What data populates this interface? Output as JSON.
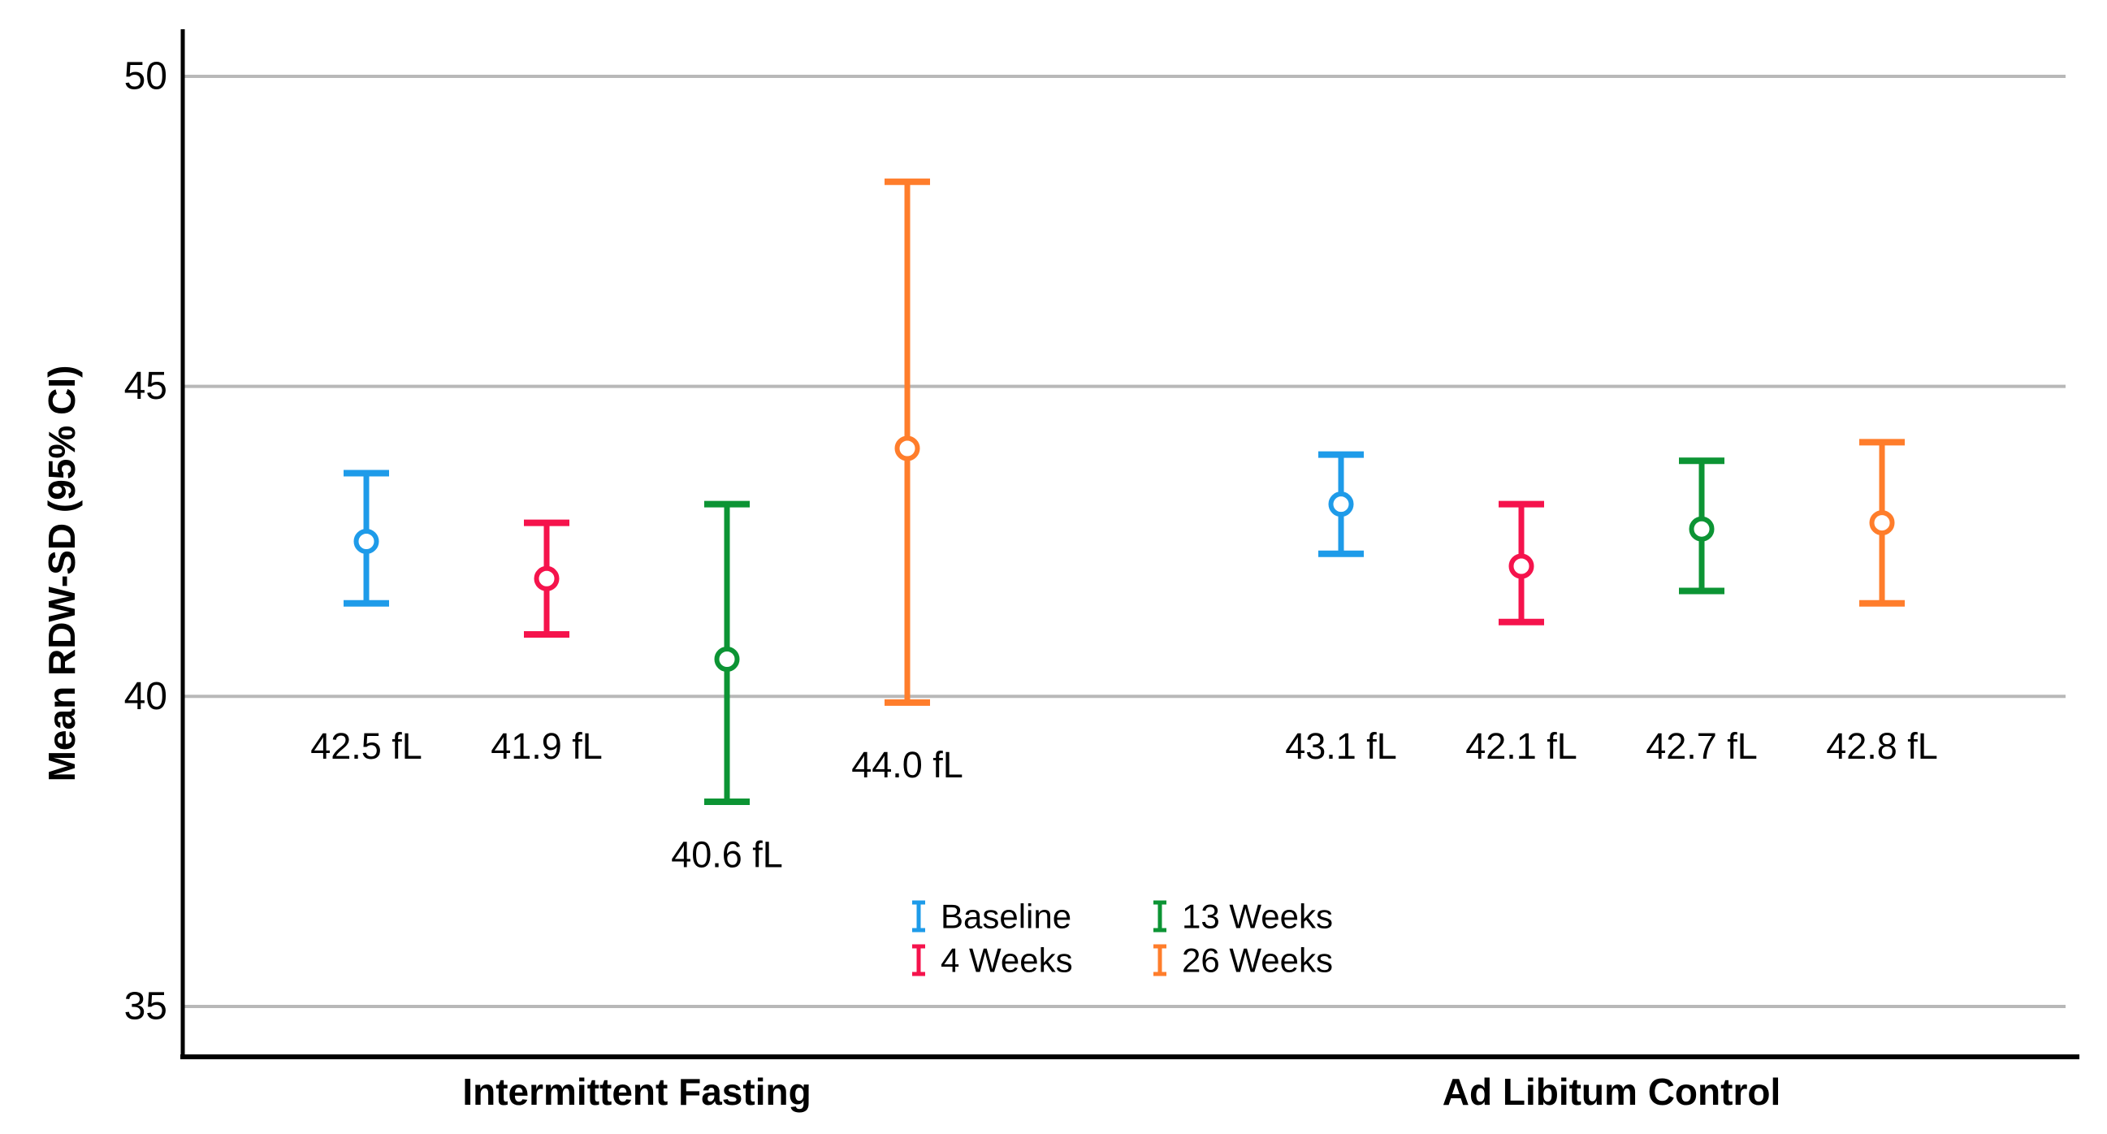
{
  "chart_data": {
    "type": "scatter",
    "subtype": "grouped-errorbar-ci",
    "title": "",
    "xlabel": "",
    "ylabel": "Mean RDW-SD (95% CI)",
    "unit": "fL",
    "ylim": [
      34.0,
      50.8
    ],
    "yticks": [
      35,
      40,
      45,
      50
    ],
    "grid": true,
    "legend_position": "inside-bottom-center, two columns",
    "categories": [
      "Intermittent Fasting",
      "Ad Libitum Control"
    ],
    "series": [
      {
        "name": "Baseline",
        "color": "#1E9BE9",
        "points": [
          {
            "group": "Intermittent Fasting",
            "mean": 42.5,
            "ci_low": 41.5,
            "ci_high": 43.6,
            "label": "42.5 fL"
          },
          {
            "group": "Ad Libitum Control",
            "mean": 43.1,
            "ci_low": 42.3,
            "ci_high": 43.9,
            "label": "43.1 fL"
          }
        ]
      },
      {
        "name": "4 Weeks",
        "color": "#F5134C",
        "points": [
          {
            "group": "Intermittent Fasting",
            "mean": 41.9,
            "ci_low": 41.0,
            "ci_high": 42.8,
            "label": "41.9 fL"
          },
          {
            "group": "Ad Libitum Control",
            "mean": 42.1,
            "ci_low": 41.2,
            "ci_high": 43.1,
            "label": "42.1 fL"
          }
        ]
      },
      {
        "name": "13 Weeks",
        "color": "#0C9434",
        "points": [
          {
            "group": "Intermittent Fasting",
            "mean": 40.6,
            "ci_low": 38.3,
            "ci_high": 43.1,
            "label": "40.6 fL",
            "label_value": 37.45
          },
          {
            "group": "Ad Libitum Control",
            "mean": 42.7,
            "ci_low": 41.7,
            "ci_high": 43.8,
            "label": "42.7 fL"
          }
        ]
      },
      {
        "name": "26 Weeks",
        "color": "#FF7D2B",
        "points": [
          {
            "group": "Intermittent Fasting",
            "mean": 44.0,
            "ci_low": 39.9,
            "ci_high": 48.3,
            "label": "44.0 fL",
            "label_value": 38.9
          },
          {
            "group": "Ad Libitum Control",
            "mean": 42.8,
            "ci_low": 41.5,
            "ci_high": 44.1,
            "label": "42.8 fL"
          }
        ]
      }
    ],
    "default_label_value": 39.2,
    "colors": {
      "grid": "#B8B8B8",
      "axis": "#000000",
      "background": "#FFFFFF"
    }
  }
}
